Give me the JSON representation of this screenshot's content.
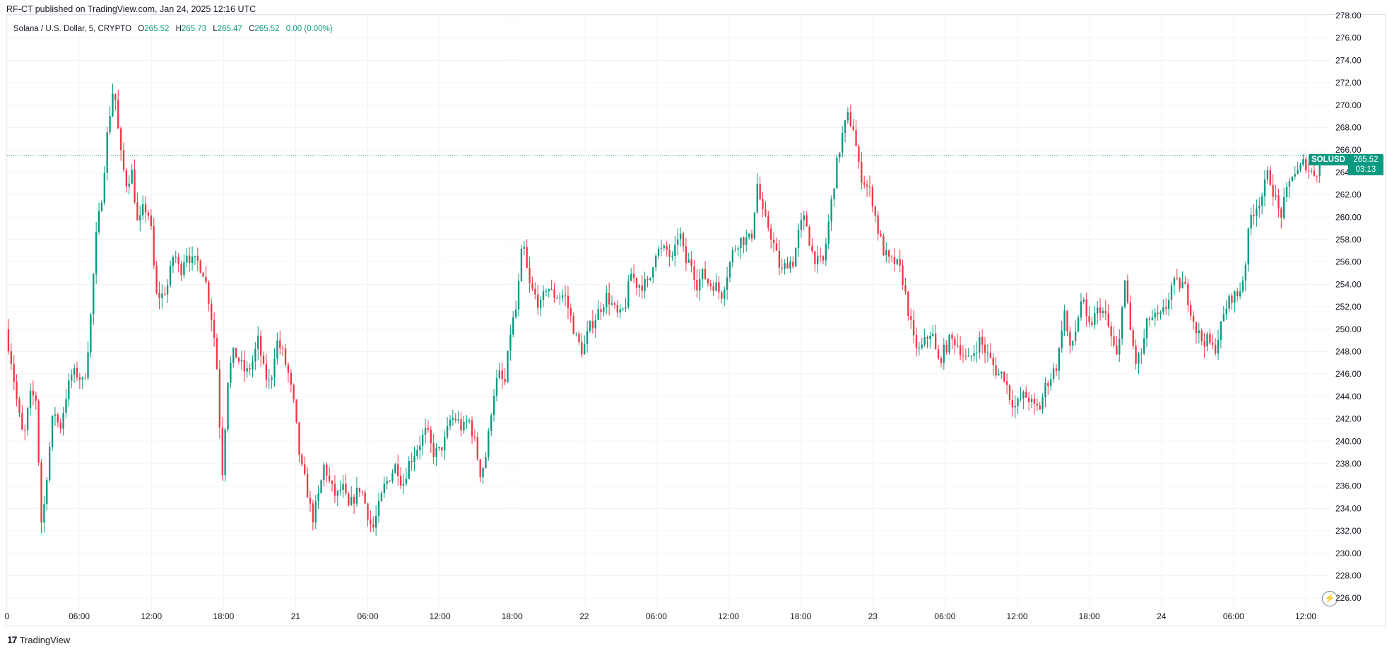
{
  "header": {
    "publisher": "RF-CT published on TradingView.com, Jan 24, 2025 12:16 UTC"
  },
  "legend": {
    "title": "Solana / U.S. Dollar, 5, CRYPTO",
    "o_label": "O",
    "o_value": "265.52",
    "h_label": "H",
    "h_value": "265.73",
    "l_label": "L",
    "l_value": "265.47",
    "c_label": "C",
    "c_value": "265.52",
    "change": "0.00 (0.00%)"
  },
  "price_tag": {
    "symbol": "SOLUSD",
    "price": "265.52",
    "countdown": "03:13"
  },
  "footer": {
    "brand": "TradingView"
  },
  "colors": {
    "up": "#089981",
    "down": "#f23645",
    "grid": "#f0f3fa",
    "axis_text": "#131722",
    "price_line": "#089981"
  },
  "icons": {
    "replay": "lightning-replay-icon",
    "logo": "tradingview-logo-icon"
  },
  "chart_data": {
    "type": "candlestick",
    "symbol": "SOLUSD",
    "interval": "5",
    "last_price": 265.52,
    "ylim": [
      225,
      278
    ],
    "y_ticks": [
      "226.00",
      "228.00",
      "230.00",
      "232.00",
      "234.00",
      "236.00",
      "238.00",
      "240.00",
      "242.00",
      "244.00",
      "246.00",
      "248.00",
      "250.00",
      "252.00",
      "254.00",
      "256.00",
      "258.00",
      "260.00",
      "262.00",
      "264.00",
      "266.00",
      "268.00",
      "270.00",
      "272.00",
      "274.00",
      "276.00",
      "278.00"
    ],
    "x_ticks": [
      {
        "label": "0",
        "t": 0
      },
      {
        "label": "06:00",
        "t": 6
      },
      {
        "label": "12:00",
        "t": 12
      },
      {
        "label": "18:00",
        "t": 18
      },
      {
        "label": "21",
        "t": 24
      },
      {
        "label": "06:00",
        "t": 30
      },
      {
        "label": "12:00",
        "t": 36
      },
      {
        "label": "18:00",
        "t": 42
      },
      {
        "label": "22",
        "t": 48
      },
      {
        "label": "06:00",
        "t": 54
      },
      {
        "label": "12:00",
        "t": 60
      },
      {
        "label": "18:00",
        "t": 66
      },
      {
        "label": "23",
        "t": 72
      },
      {
        "label": "06:00",
        "t": 78
      },
      {
        "label": "12:00",
        "t": 84
      },
      {
        "label": "18:00",
        "t": 90
      },
      {
        "label": "24",
        "t": 96
      },
      {
        "label": "06:00",
        "t": 102
      },
      {
        "label": "12:00",
        "t": 108
      }
    ],
    "path_points": [
      [
        0,
        250
      ],
      [
        0.5,
        247
      ],
      [
        1,
        243
      ],
      [
        1.5,
        240
      ],
      [
        2,
        244
      ],
      [
        2.5,
        244
      ],
      [
        3,
        232
      ],
      [
        3.5,
        238
      ],
      [
        4,
        243
      ],
      [
        4.5,
        241
      ],
      [
        5,
        244
      ],
      [
        5.5,
        246
      ],
      [
        6,
        246
      ],
      [
        6.5,
        245
      ],
      [
        7,
        250
      ],
      [
        7.5,
        258
      ],
      [
        8,
        262
      ],
      [
        8.5,
        268
      ],
      [
        9,
        272
      ],
      [
        9.5,
        266
      ],
      [
        10,
        263
      ],
      [
        10.5,
        264
      ],
      [
        11,
        259
      ],
      [
        11.5,
        261
      ],
      [
        12,
        260
      ],
      [
        12.5,
        253
      ],
      [
        13,
        253
      ],
      [
        13.5,
        254
      ],
      [
        14,
        257
      ],
      [
        14.5,
        255
      ],
      [
        15,
        257
      ],
      [
        15.5,
        256
      ],
      [
        16,
        256
      ],
      [
        16.5,
        255
      ],
      [
        17,
        252
      ],
      [
        17.5,
        248
      ],
      [
        18,
        237
      ],
      [
        18.5,
        246
      ],
      [
        19,
        248
      ],
      [
        19.5,
        247
      ],
      [
        20,
        246
      ],
      [
        20.5,
        247
      ],
      [
        21,
        249
      ],
      [
        21.5,
        246
      ],
      [
        22,
        245
      ],
      [
        22.5,
        249
      ],
      [
        23,
        248
      ],
      [
        23.5,
        246
      ],
      [
        24,
        243
      ],
      [
        24.5,
        238
      ],
      [
        25,
        236
      ],
      [
        25.5,
        233
      ],
      [
        26,
        235
      ],
      [
        26.5,
        238
      ],
      [
        27,
        236
      ],
      [
        27.5,
        235
      ],
      [
        28,
        236
      ],
      [
        28.5,
        234
      ],
      [
        29,
        235
      ],
      [
        29.5,
        236
      ],
      [
        30,
        234
      ],
      [
        30.5,
        232
      ],
      [
        31,
        234
      ],
      [
        31.5,
        236
      ],
      [
        32,
        237
      ],
      [
        32.5,
        238
      ],
      [
        33,
        236
      ],
      [
        33.5,
        238
      ],
      [
        34,
        239
      ],
      [
        34.5,
        240
      ],
      [
        35,
        241
      ],
      [
        35.5,
        239
      ],
      [
        36,
        239
      ],
      [
        36.5,
        240
      ],
      [
        37,
        242
      ],
      [
        37.5,
        242
      ],
      [
        38,
        241
      ],
      [
        38.5,
        242
      ],
      [
        39,
        240
      ],
      [
        39.5,
        237
      ],
      [
        40,
        239
      ],
      [
        40.5,
        244
      ],
      [
        41,
        246
      ],
      [
        41.5,
        245
      ],
      [
        42,
        250
      ],
      [
        42.5,
        252
      ],
      [
        43,
        258
      ],
      [
        43.5,
        254
      ],
      [
        44,
        253
      ],
      [
        44.5,
        252
      ],
      [
        45,
        254
      ],
      [
        45.5,
        253
      ],
      [
        46,
        253
      ],
      [
        46.5,
        253
      ],
      [
        47,
        251
      ],
      [
        47.5,
        249
      ],
      [
        48,
        248
      ],
      [
        48.5,
        250
      ],
      [
        49,
        251
      ],
      [
        49.5,
        252
      ],
      [
        50,
        253
      ],
      [
        50.5,
        252
      ],
      [
        51,
        251
      ],
      [
        51.5,
        252
      ],
      [
        52,
        255
      ],
      [
        52.5,
        254
      ],
      [
        53,
        254
      ],
      [
        53.5,
        254
      ],
      [
        54,
        257
      ],
      [
        54.5,
        257
      ],
      [
        55,
        257
      ],
      [
        55.5,
        256
      ],
      [
        56,
        259
      ],
      [
        56.5,
        256
      ],
      [
        57,
        256
      ],
      [
        57.5,
        254
      ],
      [
        58,
        255
      ],
      [
        58.5,
        254
      ],
      [
        59,
        254
      ],
      [
        59.5,
        253
      ],
      [
        60,
        255
      ],
      [
        60.5,
        257
      ],
      [
        61,
        258
      ],
      [
        61.5,
        258
      ],
      [
        62,
        258
      ],
      [
        62.5,
        263
      ],
      [
        63,
        260
      ],
      [
        63.5,
        259
      ],
      [
        64,
        257
      ],
      [
        64.5,
        255
      ],
      [
        65,
        256
      ],
      [
        65.5,
        256
      ],
      [
        66,
        259
      ],
      [
        66.5,
        260
      ],
      [
        67,
        257
      ],
      [
        67.5,
        256
      ],
      [
        68,
        256
      ],
      [
        68.5,
        260
      ],
      [
        69,
        264
      ],
      [
        69.5,
        267
      ],
      [
        70,
        269
      ],
      [
        70.5,
        268
      ],
      [
        71,
        264
      ],
      [
        71.5,
        263
      ],
      [
        72,
        262
      ],
      [
        72.5,
        259
      ],
      [
        73,
        257
      ],
      [
        73.5,
        256
      ],
      [
        74,
        256
      ],
      [
        74.5,
        255
      ],
      [
        75,
        252
      ],
      [
        75.5,
        249
      ],
      [
        76,
        248
      ],
      [
        76.5,
        249
      ],
      [
        77,
        250
      ],
      [
        77.5,
        247
      ],
      [
        78,
        248
      ],
      [
        78.5,
        249
      ],
      [
        79,
        249
      ],
      [
        79.5,
        248
      ],
      [
        80,
        247
      ],
      [
        80.5,
        248
      ],
      [
        81,
        249
      ],
      [
        81.5,
        248
      ],
      [
        82,
        247
      ],
      [
        82.5,
        246
      ],
      [
        83,
        246
      ],
      [
        83.5,
        244
      ],
      [
        84,
        243
      ],
      [
        84.5,
        244
      ],
      [
        85,
        244
      ],
      [
        85.5,
        243
      ],
      [
        86,
        243
      ],
      [
        86.5,
        245
      ],
      [
        87,
        246
      ],
      [
        87.5,
        247
      ],
      [
        88,
        252
      ],
      [
        88.5,
        248
      ],
      [
        89,
        250
      ],
      [
        89.5,
        253
      ],
      [
        90,
        250
      ],
      [
        90.5,
        251
      ],
      [
        91,
        252
      ],
      [
        91.5,
        251
      ],
      [
        92,
        249
      ],
      [
        92.5,
        247
      ],
      [
        93,
        255
      ],
      [
        93.5,
        250
      ],
      [
        94,
        247
      ],
      [
        94.5,
        248
      ],
      [
        95,
        251
      ],
      [
        95.5,
        251
      ],
      [
        96,
        251
      ],
      [
        96.5,
        252
      ],
      [
        97,
        254
      ],
      [
        97.5,
        254
      ],
      [
        98,
        254
      ],
      [
        98.5,
        252
      ],
      [
        99,
        250
      ],
      [
        99.5,
        249
      ],
      [
        100,
        249
      ],
      [
        100.5,
        248
      ],
      [
        101,
        250
      ],
      [
        101.5,
        252
      ],
      [
        102,
        253
      ],
      [
        102.5,
        253
      ],
      [
        103,
        255
      ],
      [
        103.5,
        260
      ],
      [
        104,
        261
      ],
      [
        104.5,
        262
      ],
      [
        105,
        264
      ],
      [
        105.5,
        262
      ],
      [
        106,
        260
      ],
      [
        106.5,
        262
      ],
      [
        107,
        264
      ],
      [
        107.5,
        264
      ],
      [
        108,
        265
      ],
      [
        108.5,
        264
      ],
      [
        109,
        264
      ],
      [
        109.5,
        265.52
      ]
    ]
  }
}
